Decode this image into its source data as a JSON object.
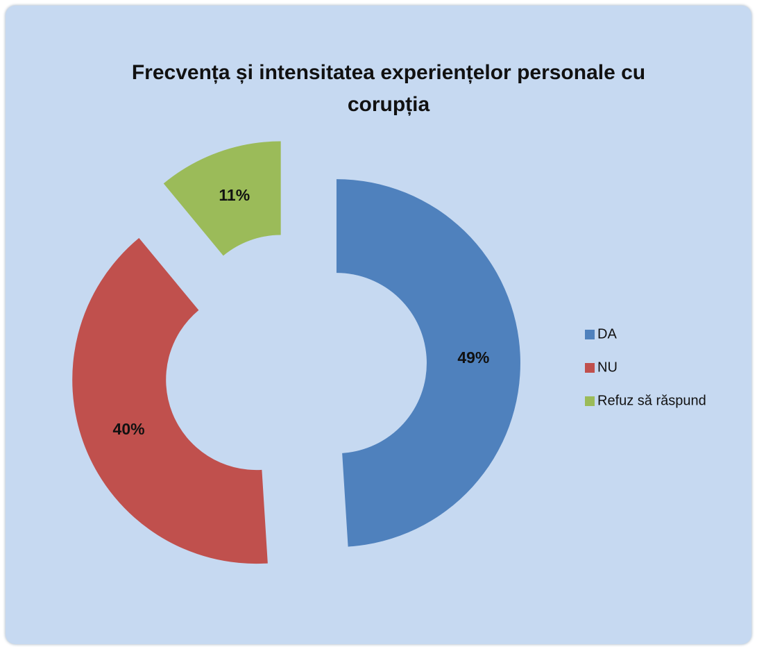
{
  "chart_data": {
    "type": "donut",
    "title": "Frecvența și intensitatea experiențelor personale cu corupția",
    "categories": [
      "DA",
      "NU",
      "Refuz să răspund"
    ],
    "values": [
      49,
      40,
      11
    ],
    "value_labels": [
      "49%",
      "40%",
      "11%"
    ],
    "colors": [
      "#4f81bd",
      "#c0504d",
      "#9bbb59"
    ],
    "legend": "right"
  }
}
